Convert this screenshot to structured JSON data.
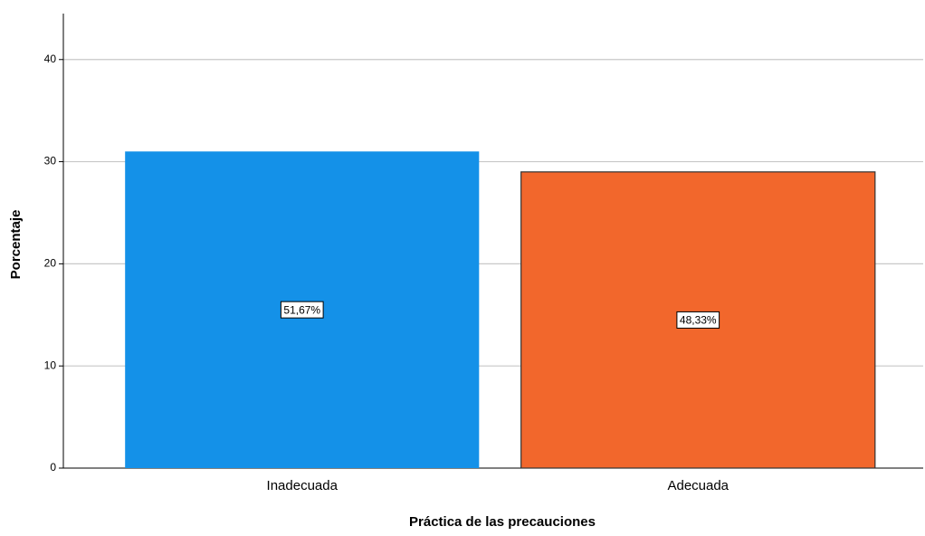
{
  "chart_data": {
    "type": "bar",
    "x_label": "Práctica de las precauciones",
    "y_label": "Porcentaje",
    "categories": [
      "Inadecuada",
      "Adecuada"
    ],
    "values": [
      31,
      29
    ],
    "colors": [
      "#1491e8",
      "#f2672c"
    ],
    "annotations": [
      "51,67%",
      "48,33%"
    ],
    "ylim": [
      0,
      44.5
    ],
    "yticks": [
      0,
      10,
      20,
      30,
      40
    ],
    "grid": true
  }
}
